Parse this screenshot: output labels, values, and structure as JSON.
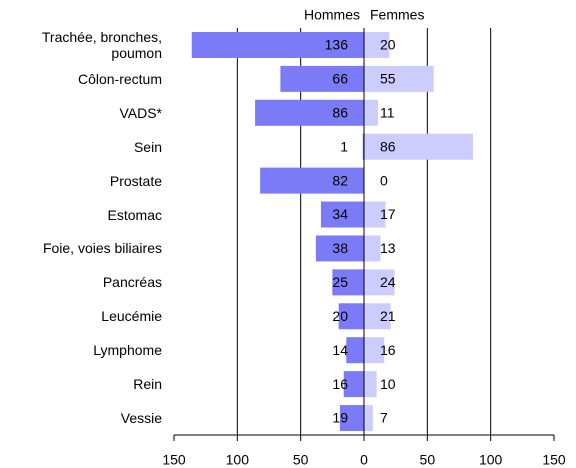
{
  "chart_data": {
    "type": "pyramid",
    "categories": [
      "Trachée, bronches, poumon",
      "Côlon-rectum",
      "VADS*",
      "Sein",
      "Prostate",
      "Estomac",
      "Foie, voies biliaires",
      "Pancréas",
      "Leucémie",
      "Lymphome",
      "Rein",
      "Vessie"
    ],
    "series": [
      {
        "name": "Hommes",
        "side": "left",
        "color": "#7b7bf7",
        "values": [
          136,
          66,
          86,
          1,
          82,
          34,
          38,
          25,
          20,
          14,
          16,
          19
        ]
      },
      {
        "name": "Femmes",
        "side": "right",
        "color": "#ccccff",
        "values": [
          20,
          55,
          11,
          86,
          0,
          17,
          13,
          24,
          21,
          16,
          10,
          7
        ]
      }
    ],
    "xlim": [
      0,
      150
    ],
    "xticks": [
      0,
      50,
      100,
      150
    ],
    "grid": true
  }
}
